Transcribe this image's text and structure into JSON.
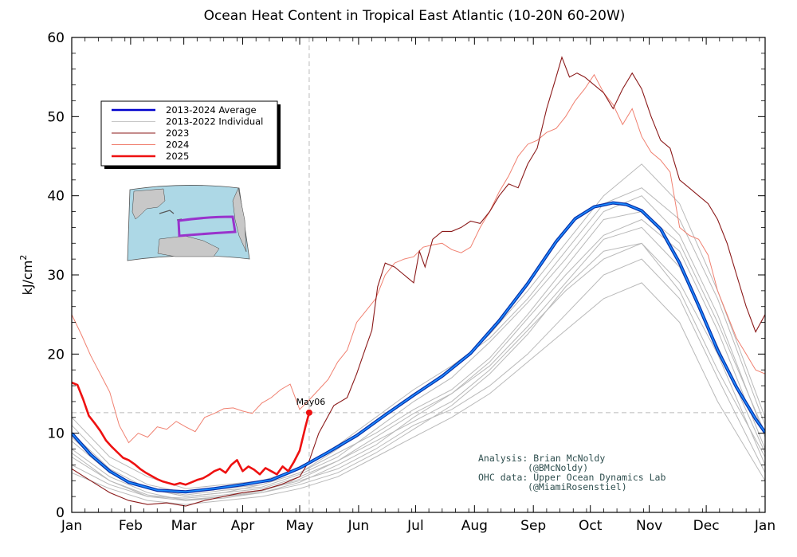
{
  "chart_data": {
    "type": "line",
    "title": "Ocean Heat Content in Tropical East Atlantic (10-20N 60-20W)",
    "ylabel_main": "kJ/cm",
    "ylabel_sup": "2",
    "xlabel": "",
    "ylim": [
      0,
      60
    ],
    "yticks": [
      "0",
      "10",
      "20",
      "30",
      "40",
      "50",
      "60"
    ],
    "xlim_days": [
      0,
      365
    ],
    "month_ticks": [
      "Jan",
      "Feb",
      "Mar",
      "Apr",
      "May",
      "Jun",
      "Jul",
      "Aug",
      "Sep",
      "Oct",
      "Nov",
      "Dec",
      "Jan"
    ],
    "grid": false,
    "legend_position": "upper-left",
    "legend": [
      {
        "label": "2013-2024 Average",
        "color": "#0000cc",
        "width": 2.5
      },
      {
        "label": "2013-2022 Individual",
        "color": "#c8c8c8",
        "width": 1
      },
      {
        "label": "2023",
        "color": "#8b1a1a",
        "width": 1
      },
      {
        "label": "2024",
        "color": "#f08070",
        "width": 1
      },
      {
        "label": "2025",
        "color": "#ee1111",
        "width": 2.5
      }
    ],
    "annotation": {
      "label": "May06",
      "x": 125,
      "y": 12.6
    },
    "series": [
      {
        "name": "2013-2024 Average",
        "color": "#0066ee",
        "x": [
          0,
          10,
          20,
          30,
          45,
          60,
          75,
          90,
          105,
          120,
          135,
          150,
          165,
          180,
          195,
          210,
          225,
          240,
          255,
          265,
          275,
          285,
          292,
          300,
          310,
          320,
          330,
          340,
          350,
          360,
          365
        ],
        "y": [
          10,
          7.3,
          5.2,
          3.8,
          2.8,
          2.6,
          3.0,
          3.5,
          4.1,
          5.6,
          7.6,
          9.7,
          12.3,
          14.8,
          17.2,
          20.1,
          24.2,
          28.9,
          34.2,
          37.1,
          38.6,
          39.1,
          38.9,
          38.1,
          35.8,
          31.5,
          26.1,
          20.5,
          15.8,
          11.8,
          10.1
        ]
      },
      {
        "name": "2023",
        "color": "#8b1a1a",
        "x": [
          0,
          10,
          20,
          30,
          40,
          50,
          60,
          70,
          80,
          90,
          100,
          110,
          120,
          125,
          130,
          138,
          145,
          150,
          155,
          158,
          161,
          165,
          170,
          175,
          180,
          183,
          186,
          190,
          195,
          200,
          205,
          210,
          215,
          220,
          225,
          230,
          235,
          240,
          245,
          250,
          255,
          258,
          262,
          266,
          270,
          275,
          280,
          285,
          290,
          295,
          300,
          305,
          310,
          315,
          320,
          325,
          330,
          335,
          340,
          345,
          350,
          355,
          360,
          365
        ],
        "y": [
          5.5,
          4,
          2.5,
          1.5,
          1,
          1.2,
          0.8,
          1.5,
          2,
          2.5,
          2.8,
          3.5,
          4.5,
          6.5,
          10,
          13.5,
          14.5,
          17.5,
          21,
          23,
          28.5,
          31.5,
          31,
          30,
          29,
          33,
          31,
          34.5,
          35.5,
          35.5,
          36,
          36.8,
          36.5,
          38,
          40,
          41.5,
          41,
          44,
          46,
          51,
          55,
          57.5,
          55,
          55.5,
          55,
          54,
          53,
          51,
          53.5,
          55.5,
          53.5,
          50,
          47,
          46,
          42,
          41,
          40,
          39,
          37,
          34,
          30,
          26,
          22.8,
          25
        ]
      },
      {
        "name": "2024",
        "color": "#f08070",
        "x": [
          0,
          5,
          10,
          15,
          20,
          25,
          30,
          35,
          40,
          45,
          50,
          55,
          60,
          65,
          70,
          75,
          80,
          85,
          90,
          95,
          100,
          105,
          110,
          115,
          120,
          125,
          130,
          135,
          140,
          145,
          150,
          155,
          160,
          165,
          170,
          175,
          180,
          185,
          190,
          195,
          200,
          205,
          210,
          215,
          220,
          225,
          230,
          235,
          240,
          245,
          250,
          255,
          260,
          265,
          270,
          275,
          280,
          285,
          290,
          295,
          300,
          305,
          310,
          315,
          320,
          325,
          330,
          335,
          340,
          345,
          350,
          355,
          360,
          365
        ],
        "y": [
          25,
          22.5,
          19.8,
          17.5,
          15.2,
          11,
          8.8,
          10,
          9.5,
          10.8,
          10.5,
          11.5,
          10.8,
          10.2,
          12,
          12.5,
          13.1,
          13.2,
          12.8,
          12.5,
          13.8,
          14.5,
          15.5,
          16.2,
          13,
          14.2,
          15.5,
          16.8,
          19,
          20.5,
          24,
          25.5,
          27,
          30,
          31.5,
          32,
          32.3,
          33.5,
          33.8,
          34,
          33.2,
          32.8,
          33.5,
          36,
          38,
          40.5,
          42.5,
          45,
          46.5,
          47,
          48,
          48.5,
          50,
          52,
          53.5,
          55.3,
          53,
          51.5,
          49,
          51,
          47.5,
          45.5,
          44.5,
          43,
          36,
          35,
          34.5,
          32.5,
          28,
          25,
          22,
          20,
          18,
          17.5
        ]
      },
      {
        "name": "2025",
        "color": "#ee1111",
        "x": [
          0,
          3,
          6,
          9,
          12,
          15,
          18,
          21,
          24,
          27,
          30,
          33,
          36,
          39,
          42,
          45,
          48,
          51,
          54,
          57,
          60,
          63,
          66,
          69,
          72,
          75,
          78,
          81,
          84,
          87,
          90,
          93,
          96,
          99,
          102,
          105,
          108,
          111,
          114,
          117,
          120,
          123,
          125
        ],
        "y": [
          16.4,
          16.1,
          14.3,
          12.2,
          11.3,
          10.3,
          9.1,
          8.3,
          7.6,
          6.9,
          6.6,
          6.1,
          5.5,
          5.0,
          4.6,
          4.2,
          3.9,
          3.7,
          3.5,
          3.7,
          3.5,
          3.8,
          4.1,
          4.3,
          4.7,
          5.2,
          5.5,
          5.0,
          6.0,
          6.6,
          5.2,
          5.8,
          5.4,
          4.8,
          5.6,
          5.2,
          4.8,
          5.8,
          5.2,
          6.4,
          7.8,
          10.8,
          12.6
        ]
      }
    ],
    "individual_series": [
      {
        "name": "",
        "x": [
          0,
          20,
          40,
          60,
          80,
          100,
          120,
          140,
          160,
          180,
          200,
          220,
          240,
          260,
          280,
          300,
          320,
          340,
          365
        ],
        "y": [
          9,
          5,
          3,
          2,
          2.5,
          3,
          4.5,
          6.5,
          9,
          11.5,
          14,
          18,
          23,
          28,
          32,
          34,
          28,
          18,
          7
        ]
      },
      {
        "name": "",
        "x": [
          0,
          20,
          40,
          60,
          80,
          100,
          120,
          140,
          160,
          180,
          200,
          220,
          240,
          260,
          280,
          300,
          320,
          340,
          365
        ],
        "y": [
          7,
          4,
          2,
          1.5,
          2,
          2.5,
          3.5,
          5,
          7.5,
          10.5,
          13.5,
          17.5,
          22.5,
          28.5,
          33,
          34,
          29,
          20,
          6
        ]
      },
      {
        "name": "",
        "x": [
          0,
          20,
          40,
          60,
          80,
          100,
          120,
          140,
          160,
          180,
          200,
          220,
          240,
          260,
          280,
          300,
          320,
          340,
          365
        ],
        "y": [
          11,
          6,
          3.5,
          2.5,
          3,
          3.5,
          5,
          7.5,
          10,
          13,
          15.5,
          19.5,
          25,
          31,
          37,
          38,
          34,
          24,
          10
        ]
      },
      {
        "name": "",
        "x": [
          0,
          20,
          40,
          60,
          80,
          100,
          120,
          140,
          160,
          180,
          200,
          220,
          240,
          260,
          280,
          300,
          320,
          340,
          365
        ],
        "y": [
          6,
          3.5,
          2,
          1.8,
          2.2,
          2.8,
          4,
          5.5,
          8,
          11,
          13,
          16,
          20,
          25,
          30,
          32,
          27,
          17,
          5
        ]
      },
      {
        "name": "",
        "x": [
          0,
          20,
          40,
          60,
          80,
          100,
          120,
          140,
          160,
          180,
          200,
          220,
          240,
          260,
          280,
          300,
          320,
          340,
          365
        ],
        "y": [
          12,
          7,
          4.5,
          3,
          3.5,
          4,
          5.5,
          8.5,
          12,
          15.5,
          18.5,
          22,
          27,
          33,
          39,
          41,
          37,
          27,
          11
        ]
      },
      {
        "name": "",
        "x": [
          0,
          20,
          40,
          60,
          80,
          100,
          120,
          140,
          160,
          180,
          200,
          220,
          240,
          260,
          280,
          300,
          320,
          340,
          365
        ],
        "y": [
          8,
          4.5,
          2.5,
          1.5,
          1.8,
          2.5,
          3.8,
          6,
          8.5,
          12,
          15,
          19,
          24.5,
          30,
          35,
          37,
          33,
          23,
          8
        ]
      },
      {
        "name": "",
        "x": [
          0,
          20,
          40,
          60,
          80,
          100,
          120,
          140,
          160,
          180,
          200,
          220,
          240,
          260,
          280,
          300,
          320,
          340,
          365
        ],
        "y": [
          10,
          5.5,
          3,
          2.2,
          2.8,
          3.2,
          4.8,
          7,
          10.5,
          14,
          17,
          21.5,
          26.5,
          32,
          38,
          40,
          35,
          25,
          9.5
        ]
      },
      {
        "name": "",
        "x": [
          0,
          20,
          40,
          60,
          80,
          100,
          120,
          140,
          160,
          180,
          200,
          220,
          240,
          260,
          280,
          300,
          320,
          340,
          365
        ],
        "y": [
          5,
          3,
          1.5,
          1,
          1.5,
          2,
          3,
          4.5,
          7,
          9.5,
          12,
          15,
          19,
          23,
          27,
          29,
          24,
          14,
          4
        ]
      },
      {
        "name": "",
        "x": [
          0,
          20,
          40,
          60,
          80,
          100,
          120,
          140,
          160,
          180,
          200,
          220,
          240,
          260,
          280,
          300,
          320,
          340,
          365
        ],
        "y": [
          9.5,
          5,
          3,
          2,
          2.5,
          3.5,
          5,
          8,
          11.5,
          15,
          18,
          22.5,
          28,
          34,
          40,
          44,
          39,
          28,
          12
        ]
      },
      {
        "name": "",
        "x": [
          0,
          20,
          40,
          60,
          80,
          100,
          120,
          140,
          160,
          180,
          200,
          220,
          240,
          260,
          280,
          300,
          320,
          340,
          365
        ],
        "y": [
          7.5,
          4,
          2.2,
          1.6,
          2,
          2.7,
          4.2,
          6.5,
          9.5,
          12.5,
          15,
          18.5,
          23.5,
          29,
          34.5,
          36,
          31,
          21,
          7.5
        ]
      }
    ]
  },
  "credits": {
    "line1": "Analysis: Brian McNoldy",
    "line2": "(@BMcNoldy)",
    "line3": "OHC data: Upper Ocean Dynamics Lab",
    "line4": "(@MiamiRosenstiel)"
  }
}
